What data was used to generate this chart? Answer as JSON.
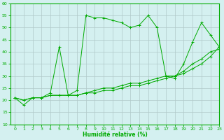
{
  "xlabel": "Humidité relative (%)",
  "background_color": "#d4f0f0",
  "grid_color": "#b0c8c8",
  "line_color": "#00aa00",
  "x": [
    0,
    1,
    2,
    3,
    4,
    5,
    6,
    7,
    8,
    9,
    10,
    11,
    12,
    13,
    14,
    15,
    16,
    17,
    18,
    19,
    20,
    21,
    22,
    23
  ],
  "y_main": [
    21,
    18,
    21,
    21,
    23,
    42,
    22,
    24,
    55,
    54,
    54,
    53,
    52,
    50,
    51,
    55,
    50,
    30,
    29,
    35,
    44,
    52,
    47,
    42
  ],
  "y_line2": [
    21,
    20,
    21,
    21,
    22,
    22,
    22,
    22,
    23,
    24,
    25,
    25,
    26,
    27,
    27,
    28,
    29,
    30,
    30,
    32,
    35,
    37,
    40,
    41
  ],
  "y_line3": [
    21,
    20,
    21,
    21,
    22,
    22,
    22,
    22,
    23,
    23,
    24,
    24,
    25,
    26,
    26,
    27,
    28,
    29,
    30,
    31,
    33,
    35,
    38,
    42
  ],
  "ylim": [
    10,
    60
  ],
  "xlim": [
    -0.5,
    23
  ],
  "yticks": [
    10,
    15,
    20,
    25,
    30,
    35,
    40,
    45,
    50,
    55,
    60
  ],
  "xticks": [
    0,
    1,
    2,
    3,
    4,
    5,
    6,
    7,
    8,
    9,
    10,
    11,
    12,
    13,
    14,
    15,
    16,
    17,
    18,
    19,
    20,
    21,
    22,
    23
  ]
}
